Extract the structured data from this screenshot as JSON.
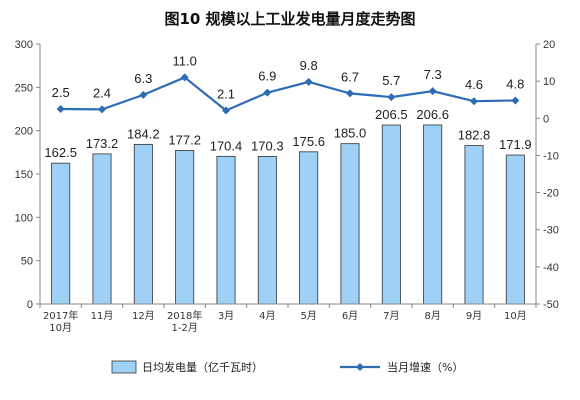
{
  "chart_data": {
    "type": "bar+line",
    "title": "图10  规模以上工业发电量月度走势图",
    "categories": [
      [
        "2017年",
        "10月"
      ],
      [
        "11月"
      ],
      [
        "12月"
      ],
      [
        "2018年",
        "1-2月"
      ],
      [
        "3月"
      ],
      [
        "4月"
      ],
      [
        "5月"
      ],
      [
        "6月"
      ],
      [
        "7月"
      ],
      [
        "8月"
      ],
      [
        "9月"
      ],
      [
        "10月"
      ]
    ],
    "series": [
      {
        "name": "日均发电量（亿千瓦时）",
        "type": "bar",
        "axis": "left",
        "color": "#9fd0f5",
        "values": [
          162.5,
          173.2,
          184.2,
          177.2,
          170.4,
          170.3,
          175.6,
          185.0,
          206.5,
          206.6,
          182.8,
          171.9
        ],
        "labels": [
          "162.5",
          "173.2",
          "184.2",
          "177.2",
          "170.4",
          "170.3",
          "175.6",
          "185.0",
          "206.5",
          "206.6",
          "182.8",
          "171.9"
        ]
      },
      {
        "name": "当月增速（%）",
        "type": "line",
        "axis": "right",
        "color": "#2e6db5",
        "values": [
          2.5,
          2.4,
          6.3,
          11.0,
          2.1,
          6.9,
          9.8,
          6.7,
          5.7,
          7.3,
          4.6,
          4.8
        ],
        "labels": [
          "2.5",
          "2.4",
          "6.3",
          "11.0",
          "2.1",
          "6.9",
          "9.8",
          "6.7",
          "5.7",
          "7.3",
          "4.6",
          "4.8"
        ]
      }
    ],
    "y_left": {
      "min": 0,
      "max": 300,
      "step": 50
    },
    "y_right": {
      "min": -50,
      "max": 20,
      "step": 10
    },
    "legend_position": "bottom"
  }
}
